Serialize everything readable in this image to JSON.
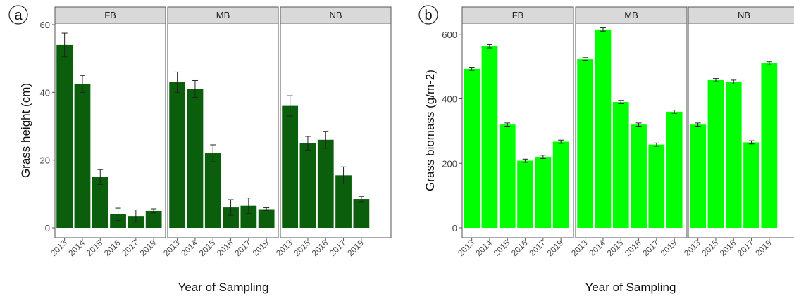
{
  "figure_labels": [
    "a",
    "b"
  ],
  "chart_data": [
    {
      "type": "bar",
      "panel_label": "a",
      "ylabel": "Grass height (cm)",
      "xlabel": "Year of Sampling",
      "ylim": [
        0,
        60
      ],
      "yticks": [
        0,
        20,
        40,
        60
      ],
      "grid": false,
      "bar_color": "#0b5e0b",
      "facets": [
        {
          "name": "FB",
          "categories": [
            "2013",
            "2014",
            "2015",
            "2016",
            "2017",
            "2019"
          ],
          "values": [
            54,
            42.5,
            15,
            4,
            3.5,
            5
          ],
          "errors": [
            3.5,
            2.5,
            2.2,
            1.8,
            1.8,
            0.6
          ]
        },
        {
          "name": "MB",
          "categories": [
            "2013",
            "2014",
            "2015",
            "2016",
            "2017",
            "2019"
          ],
          "values": [
            43,
            41,
            22,
            6,
            6.5,
            5.5
          ],
          "errors": [
            3,
            2.5,
            2.5,
            2.3,
            2.3,
            0.4
          ]
        },
        {
          "name": "NB",
          "categories": [
            "2013",
            "2015",
            "2016",
            "2017",
            "2019"
          ],
          "values": [
            36,
            25,
            26,
            15.5,
            8.5
          ],
          "errors": [
            3,
            2,
            2.5,
            2.5,
            0.8
          ]
        }
      ]
    },
    {
      "type": "bar",
      "panel_label": "b",
      "ylabel": "Grass biomass (g/m-2)",
      "xlabel": "Year of Sampling",
      "ylim": [
        0,
        630
      ],
      "yticks": [
        0,
        200,
        400,
        600
      ],
      "grid": false,
      "bar_color": "#00ff00",
      "facets": [
        {
          "name": "FB",
          "categories": [
            "2013",
            "2014",
            "2015",
            "2016",
            "2017",
            "2019"
          ],
          "values": [
            493,
            563,
            320,
            208,
            220,
            267
          ],
          "errors": [
            5,
            5,
            5,
            5,
            5,
            5
          ]
        },
        {
          "name": "MB",
          "categories": [
            "2013",
            "2014",
            "2015",
            "2016",
            "2017",
            "2019"
          ],
          "values": [
            523,
            615,
            390,
            320,
            258,
            360
          ],
          "errors": [
            5,
            5,
            5,
            5,
            5,
            5
          ]
        },
        {
          "name": "NB",
          "categories": [
            "2013",
            "2015",
            "2016",
            "2017",
            "2019"
          ],
          "values": [
            320,
            458,
            452,
            265,
            510
          ],
          "errors": [
            5,
            5,
            6,
            5,
            5
          ]
        }
      ]
    }
  ]
}
